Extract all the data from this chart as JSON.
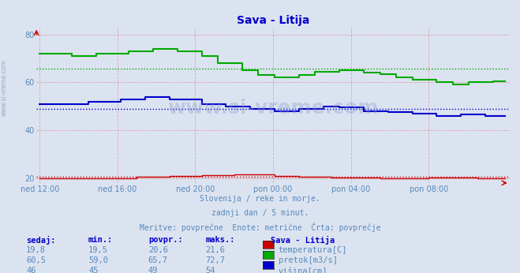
{
  "title": "Sava - Litija",
  "title_color": "#0000cc",
  "bg_color": "#dce3f0",
  "plot_bg_color": "#dce3f0",
  "subtitle_lines": [
    "Slovenija / reke in morje.",
    "zadnji dan / 5 minut.",
    "Meritve: povprečne  Enote: metrične  Črta: povprečje"
  ],
  "xtick_labels": [
    "ned 12:00",
    "ned 16:00",
    "ned 20:00",
    "pon 00:00",
    "pon 04:00",
    "pon 08:00"
  ],
  "xtick_positions": [
    0,
    48,
    96,
    144,
    192,
    240
  ],
  "ytick_positions": [
    20,
    40,
    60,
    80
  ],
  "ylim": [
    18,
    83
  ],
  "xlim": [
    -2,
    290
  ],
  "n_points": 288,
  "watermark": "www.si-vreme.com",
  "table_headers": [
    "sedaj:",
    "min.:",
    "povpr.:",
    "maks.:"
  ],
  "table_col5": "Sava - Litija",
  "rows": [
    {
      "sedaj": "19,8",
      "min": "19,5",
      "povpr": "20,6",
      "maks": "21,6",
      "label": "temperatura[C]",
      "color": "#cc0000"
    },
    {
      "sedaj": "60,5",
      "min": "59,0",
      "povpr": "65,7",
      "maks": "72,7",
      "label": "pretok[m3/s]",
      "color": "#00aa00"
    },
    {
      "sedaj": "46",
      "min": "45",
      "povpr": "49",
      "maks": "54",
      "label": "višina[cm]",
      "color": "#0000cc"
    }
  ],
  "avg_temperature": 20.6,
  "avg_pretok": 65.7,
  "avg_visina": 49.0,
  "grid_color_v": "#dd8888",
  "grid_color_h": "#dd8888",
  "text_color": "#5588bb",
  "sidebar_text": "www.si-vreme.com"
}
